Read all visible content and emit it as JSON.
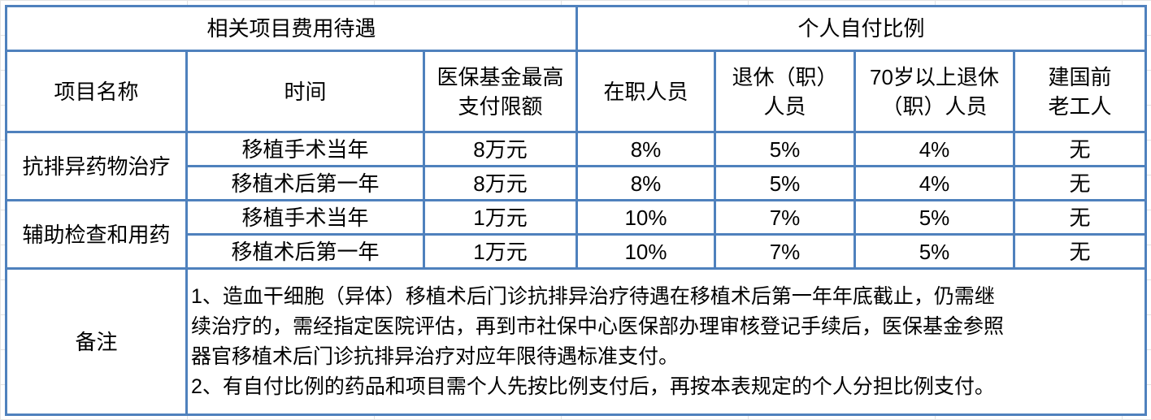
{
  "header": {
    "group1": "相关项目费用待遇",
    "group2": "个人自付比例",
    "columns": [
      "项目名称",
      "时间",
      "医保基金最高支付限额",
      "在职人员",
      "退休（职）人员",
      "70岁以上退休（职）人员",
      "建国前老工人"
    ],
    "columns_display": [
      [
        "项目名称"
      ],
      [
        "时间"
      ],
      [
        "医保基金最高",
        "支付限额"
      ],
      [
        "在职人员"
      ],
      [
        "退休（职）",
        "人员"
      ],
      [
        "70岁以上退休",
        "（职）人员"
      ],
      [
        "建国前",
        "老工人"
      ]
    ]
  },
  "groups": [
    {
      "name": "抗排异药物治疗",
      "rows": [
        {
          "time": "移植手术当年",
          "limit": "8万元",
          "employed": "8%",
          "retired": "5%",
          "over70": "4%",
          "veteran": "无"
        },
        {
          "time": "移植术后第一年",
          "limit": "8万元",
          "employed": "8%",
          "retired": "5%",
          "over70": "4%",
          "veteran": "无"
        }
      ]
    },
    {
      "name": "辅助检查和用药",
      "rows": [
        {
          "time": "移植手术当年",
          "limit": "1万元",
          "employed": "10%",
          "retired": "7%",
          "over70": "5%",
          "veteran": "无"
        },
        {
          "time": "移植术后第一年",
          "limit": "1万元",
          "employed": "10%",
          "retired": "7%",
          "over70": "5%",
          "veteran": "无"
        }
      ]
    }
  ],
  "notes": {
    "label": "备注",
    "lines": [
      "1、造血干细胞（异体）移植术后门诊抗排异治疗待遇在移植术后第一年年底截止，仍需继",
      "续治疗的，需经指定医院评估，再到市社保中心医保部办理审核登记手续后，医保基金参照",
      "器官移植术后门诊抗排异治疗对应年限待遇标准支付。",
      "2、有自付比例的药品和项目需个人先按比例支付后，再按本表规定的个人分担比例支付。"
    ]
  },
  "colors": {
    "border": "#4f81bd"
  }
}
